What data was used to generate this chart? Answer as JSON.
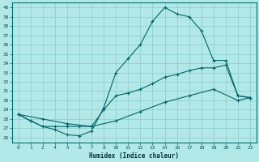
{
  "xlabel": "Humidex (Indice chaleur)",
  "bg_color": "#b3e8e8",
  "line_color": "#006666",
  "grid_color": "#88cccc",
  "ylim": [
    25.5,
    40.5
  ],
  "yticks": [
    26,
    27,
    28,
    29,
    30,
    31,
    32,
    33,
    34,
    35,
    36,
    37,
    38,
    39,
    40
  ],
  "xtick_labels": [
    "0",
    "1",
    "2",
    "4",
    "5",
    "6",
    "7",
    "8",
    "10",
    "11",
    "12",
    "13",
    "14",
    "16",
    "17",
    "18",
    "19",
    "20",
    "22",
    "23"
  ],
  "lines": [
    {
      "xi": [
        0,
        1,
        2,
        3,
        4,
        5,
        6,
        7,
        8,
        9,
        10,
        11,
        12,
        13,
        14,
        15,
        16,
        17,
        18,
        19
      ],
      "y": [
        28.5,
        27.8,
        27.2,
        26.85,
        26.3,
        26.2,
        26.7,
        29.2,
        33.0,
        34.5,
        36.0,
        38.5,
        40.0,
        39.3,
        39.0,
        37.5,
        34.3,
        34.3,
        30.5,
        30.3
      ]
    },
    {
      "xi": [
        0,
        1,
        2,
        3,
        4,
        5,
        6,
        7,
        8,
        9,
        10,
        11,
        12,
        13,
        14,
        15,
        16,
        17,
        18,
        19
      ],
      "y": [
        28.5,
        27.8,
        27.2,
        27.2,
        27.2,
        27.2,
        27.2,
        29.0,
        30.5,
        30.8,
        31.2,
        31.8,
        32.5,
        32.8,
        33.2,
        33.5,
        33.5,
        33.8,
        30.5,
        30.3
      ]
    },
    {
      "xi": [
        0,
        2,
        4,
        6,
        8,
        10,
        12,
        14,
        16,
        18,
        19
      ],
      "y": [
        28.5,
        28.0,
        27.5,
        27.2,
        27.8,
        28.8,
        29.8,
        30.5,
        31.2,
        30.0,
        30.3
      ]
    }
  ]
}
